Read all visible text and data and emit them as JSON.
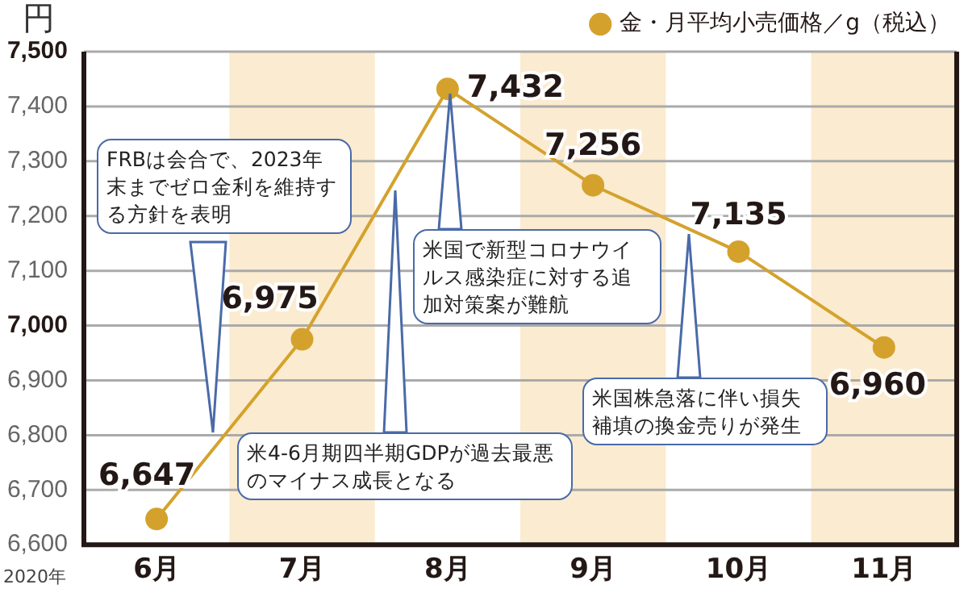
{
  "chart_data": {
    "type": "line",
    "ylabel": "円",
    "categories": [
      "6月",
      "7月",
      "8月",
      "9月",
      "10月",
      "11月"
    ],
    "series": [
      {
        "name": "金・月平均小売価格／g（税込）",
        "color": "#d4a22c",
        "values": [
          6647,
          6975,
          7432,
          7256,
          7135,
          6960
        ]
      }
    ],
    "ylim": [
      6600,
      7500
    ],
    "yticks": [
      {
        "value": 6600,
        "label": "6,600"
      },
      {
        "value": 6700,
        "label": "6,700"
      },
      {
        "value": 6800,
        "label": "6,800"
      },
      {
        "value": 6900,
        "label": "6,900"
      },
      {
        "value": 7000,
        "label": "7,000"
      },
      {
        "value": 7100,
        "label": "7,100"
      },
      {
        "value": 7200,
        "label": "7,200"
      },
      {
        "value": 7300,
        "label": "7,300"
      },
      {
        "value": 7400,
        "label": "7,400"
      },
      {
        "value": 7500,
        "label": "7,500"
      }
    ],
    "value_labels": [
      "6,647",
      "6,975",
      "7,432",
      "7,256",
      "7,135",
      "6,960"
    ],
    "bands": [
      {
        "axis": "x",
        "from": "7月",
        "to": "7月",
        "color": "#fbebd0"
      },
      {
        "axis": "x",
        "from": "9月",
        "to": "9月",
        "color": "#fbebd0"
      },
      {
        "axis": "x",
        "from": "11月",
        "to": "11月",
        "color": "#fbebd0"
      }
    ],
    "annotations": [
      "2020年",
      "FRBは会合で、2023年末までゼロ金利を維持する方針を表明",
      "米4-6月期四半期GDPが過去最悪のマイナス成長となる",
      "米国で新型コロナウイルス感染症に対する追加対策案が難航",
      "米国株急落に伴い損失補填の換金売りが発生"
    ],
    "grid": "y",
    "legend": "top right",
    "marker": "circle",
    "line_style": "solid"
  }
}
